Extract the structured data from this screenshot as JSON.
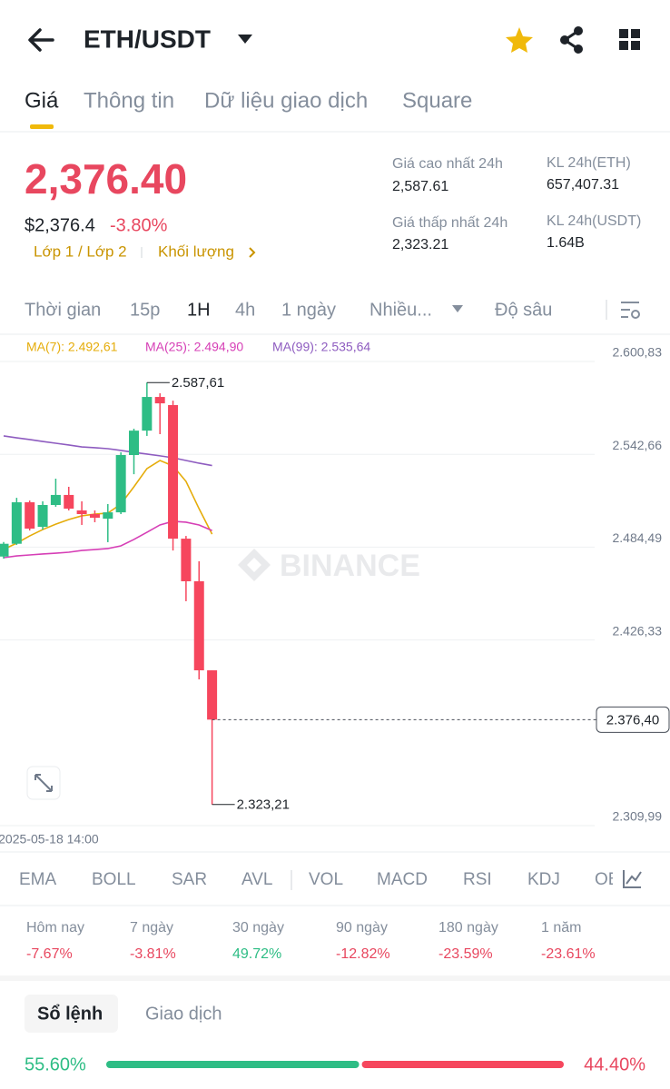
{
  "header": {
    "title": "ETH/USDT"
  },
  "tabs": [
    "Giá",
    "Thông tin",
    "Dữ liệu giao dịch",
    "Square"
  ],
  "price": {
    "last": "2,376.40",
    "usd": "$2,376.4",
    "change": "-3.80%",
    "links": [
      "Lớp 1 / Lớp 2",
      "Khối lượng"
    ]
  },
  "stats": [
    {
      "label": "Giá cao nhất 24h",
      "value": "2,587.61"
    },
    {
      "label": "KL 24h(ETH)",
      "value": "657,407.31"
    },
    {
      "label": "Giá thấp nhất 24h",
      "value": "2,323.21"
    },
    {
      "label": "KL 24h(USDT)",
      "value": "1.64B"
    }
  ],
  "intervals": [
    "Thời gian",
    "15p",
    "1H",
    "4h",
    "1 ngày",
    "Nhiều...",
    "Độ sâu"
  ],
  "chart_data": {
    "type": "candlestick",
    "x": [
      null,
      null,
      null,
      null,
      "2025-05-18 14:00",
      null,
      null,
      null,
      null,
      null,
      null,
      null,
      null,
      null,
      null,
      null,
      null
    ],
    "candles": [
      {
        "open": 2478.6,
        "high": 2487.7,
        "low": 2477.3,
        "close": 2486.6
      },
      {
        "open": 2486.6,
        "high": 2515.4,
        "low": 2485.9,
        "close": 2512.6
      },
      {
        "open": 2512.6,
        "high": 2513.7,
        "low": 2494.9,
        "close": 2496.1
      },
      {
        "open": 2497.2,
        "high": 2513.2,
        "low": 2495.5,
        "close": 2510.9
      },
      {
        "open": 2510.9,
        "high": 2527.4,
        "low": 2509.8,
        "close": 2517.2
      },
      {
        "open": 2517.2,
        "high": 2522.3,
        "low": 2507.5,
        "close": 2508.6
      },
      {
        "open": 2507.5,
        "high": 2513.2,
        "low": 2498.4,
        "close": 2505.2
      },
      {
        "open": 2505.2,
        "high": 2507.5,
        "low": 2500.1,
        "close": 2502.9
      },
      {
        "open": 2502.3,
        "high": 2511.5,
        "low": 2487.6,
        "close": 2506.3
      },
      {
        "open": 2506.3,
        "high": 2543.9,
        "low": 2505.2,
        "close": 2542.2
      },
      {
        "open": 2542.2,
        "high": 2558.7,
        "low": 2530.2,
        "close": 2557.5
      },
      {
        "open": 2557.5,
        "high": 2587.61,
        "low": 2554.2,
        "close": 2578.6
      },
      {
        "open": 2578.6,
        "high": 2580.9,
        "low": 2555.3,
        "close": 2574.6
      },
      {
        "open": 2573.5,
        "high": 2576.3,
        "low": 2482.4,
        "close": 2489.8
      },
      {
        "open": 2489.8,
        "high": 2491.5,
        "low": 2450.6,
        "close": 2463.1
      },
      {
        "open": 2463.1,
        "high": 2475.6,
        "low": 2401.6,
        "close": 2407.3
      },
      {
        "open": 2407.3,
        "high": 2407.3,
        "low": 2323.21,
        "close": 2376.4
      }
    ],
    "up_color": "#2ebd85",
    "down_color": "#f6465d",
    "series": [
      {
        "name": "MA(7)",
        "label": "MA(7): 2.492,61",
        "color": "#e5ac0a",
        "values": [
          2483.0,
          2487.0,
          2491.5,
          2495.5,
          2498.9,
          2501.8,
          2504.1,
          2505.2,
          2505.8,
          2511.5,
          2522.3,
          2533.7,
          2538.8,
          2535.4,
          2525.7,
          2508.6,
          2492.61
        ]
      },
      {
        "name": "MA(25)",
        "label": "MA(25): 2.494,90",
        "color": "#d63fb6",
        "values": [
          2477.9,
          2479.0,
          2479.6,
          2480.2,
          2480.7,
          2481.3,
          2482.4,
          2483.0,
          2483.6,
          2485.3,
          2489.3,
          2493.8,
          2498.4,
          2500.7,
          2500.1,
          2498.4,
          2494.9
        ]
      },
      {
        "name": "MA(99)",
        "label": "MA(99): 2.535,64",
        "color": "#8e5cc0",
        "values": [
          2554.2,
          2553.0,
          2551.9,
          2550.7,
          2549.6,
          2548.5,
          2547.3,
          2546.8,
          2546.2,
          2545.1,
          2543.9,
          2542.8,
          2541.7,
          2540.5,
          2538.8,
          2537.1,
          2535.64
        ]
      }
    ],
    "ylim": [
      2309.99,
      2600.83
    ],
    "yticks": [
      {
        "value": 2600.83,
        "label": "2.600,83"
      },
      {
        "value": 2542.66,
        "label": "2.542,66"
      },
      {
        "value": 2484.49,
        "label": "2.484,49"
      },
      {
        "value": 2426.33,
        "label": "2.426,33"
      },
      {
        "value": 2309.99,
        "label": "2.309,99"
      }
    ],
    "grid": true,
    "annotations": {
      "high": {
        "value": 2587.61,
        "label": "2.587,61"
      },
      "low": {
        "value": 2323.21,
        "label": "2.323,21"
      },
      "last": {
        "value": 2376.4,
        "label": "2.376,40"
      }
    },
    "watermark": "BINANCE"
  },
  "indicators": [
    "EMA",
    "BOLL",
    "SAR",
    "AVL",
    "VOL",
    "MACD",
    "RSI",
    "KDJ",
    "OBV"
  ],
  "performance": [
    {
      "label": "Hôm nay",
      "value": "-7.67%"
    },
    {
      "label": "7 ngày",
      "value": "-3.81%"
    },
    {
      "label": "30 ngày",
      "value": "49.72%"
    },
    {
      "label": "90 ngày",
      "value": "-12.82%"
    },
    {
      "label": "180 ngày",
      "value": "-23.59%"
    },
    {
      "label": "1 năm",
      "value": "-23.61%"
    }
  ],
  "orderbook": {
    "tabs": [
      "Sổ lệnh",
      "Giao dịch"
    ],
    "buy": {
      "value": 55.6,
      "label": "55.60%"
    },
    "sell": {
      "value": 44.4,
      "label": "44.40%"
    }
  }
}
